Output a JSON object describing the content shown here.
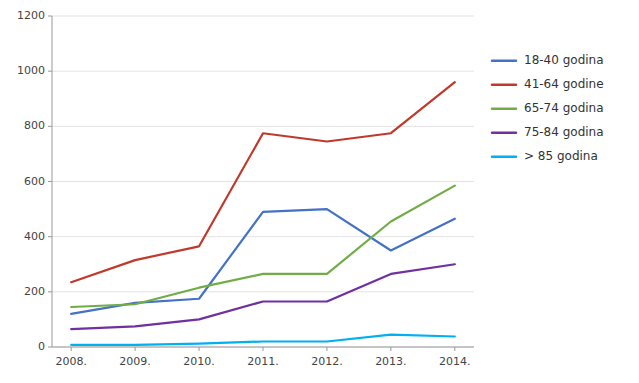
{
  "chart_data": {
    "type": "line",
    "x": [
      2008,
      2009,
      2010,
      2011,
      2012,
      2013,
      2014
    ],
    "xlim": [
      2007.7,
      2014.3
    ],
    "xticks": [
      {
        "value": 2008,
        "label": "2008."
      },
      {
        "value": 2009,
        "label": "2009."
      },
      {
        "value": 2010,
        "label": "2010."
      },
      {
        "value": 2011,
        "label": "2011."
      },
      {
        "value": 2012,
        "label": "2012."
      },
      {
        "value": 2013,
        "label": "2013."
      },
      {
        "value": 2014,
        "label": "2014."
      }
    ],
    "ylim": [
      0,
      1200
    ],
    "yticks": [
      0,
      200,
      400,
      600,
      800,
      1000,
      1200
    ],
    "grid": "y",
    "legend": "right",
    "series": [
      {
        "name": "18-40 godina",
        "color": "#4472C4",
        "values": [
          120,
          160,
          175,
          490,
          500,
          350,
          465
        ]
      },
      {
        "name": "41-64 godine",
        "color": "#C0392B",
        "values": [
          235,
          315,
          365,
          775,
          745,
          775,
          960
        ]
      },
      {
        "name": "65-74 godina",
        "color": "#70AD47",
        "values": [
          145,
          155,
          215,
          265,
          265,
          455,
          585
        ]
      },
      {
        "name": "75-84 godina",
        "color": "#7030A0",
        "values": [
          65,
          75,
          100,
          165,
          165,
          265,
          300
        ]
      },
      {
        "name": "> 85 godina",
        "color": "#00B0F0",
        "values": [
          8,
          8,
          12,
          20,
          20,
          45,
          38
        ]
      }
    ]
  }
}
